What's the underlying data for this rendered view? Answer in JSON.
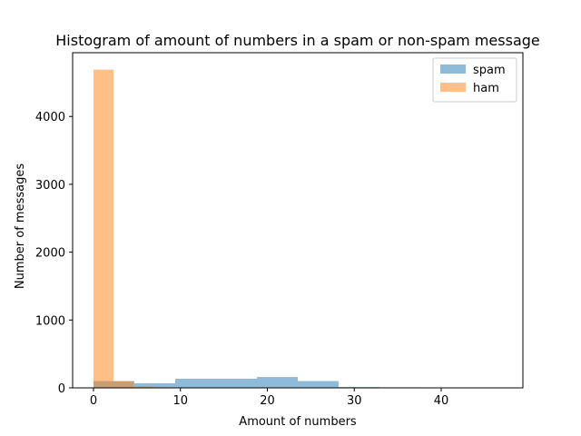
{
  "chart_data": {
    "type": "bar",
    "title": "Histogram of amount of numbers in a spam or non-spam message",
    "xlabel": "Amount of numbers",
    "ylabel": "Number of messages",
    "xlim": [
      -2.4,
      49.4
    ],
    "ylim": [
      0,
      4940
    ],
    "x_ticks": [
      0,
      10,
      20,
      30,
      40
    ],
    "y_ticks": [
      0,
      1000,
      2000,
      3000,
      4000
    ],
    "grid": false,
    "legend_position": "top-right",
    "series": [
      {
        "name": "spam",
        "color": "#1f77b4",
        "opacity": 0.5,
        "bins": [
          {
            "x0": 0.0,
            "x1": 4.7,
            "value": 100
          },
          {
            "x0": 4.7,
            "x1": 9.4,
            "value": 68
          },
          {
            "x0": 9.4,
            "x1": 14.1,
            "value": 135
          },
          {
            "x0": 14.1,
            "x1": 18.8,
            "value": 135
          },
          {
            "x0": 18.8,
            "x1": 23.5,
            "value": 160
          },
          {
            "x0": 23.5,
            "x1": 28.2,
            "value": 100
          },
          {
            "x0": 28.2,
            "x1": 32.9,
            "value": 12
          },
          {
            "x0": 32.9,
            "x1": 37.6,
            "value": 8
          },
          {
            "x0": 37.6,
            "x1": 42.3,
            "value": 0
          },
          {
            "x0": 42.3,
            "x1": 47.0,
            "value": 1
          }
        ]
      },
      {
        "name": "ham",
        "color": "#ff7f0e",
        "opacity": 0.5,
        "bins": [
          {
            "x0": 0.0,
            "x1": 2.3,
            "value": 4690
          },
          {
            "x0": 2.3,
            "x1": 4.6,
            "value": 95
          },
          {
            "x0": 4.6,
            "x1": 6.9,
            "value": 20
          },
          {
            "x0": 6.9,
            "x1": 9.2,
            "value": 8
          },
          {
            "x0": 9.2,
            "x1": 11.5,
            "value": 3
          },
          {
            "x0": 11.5,
            "x1": 13.8,
            "value": 2
          },
          {
            "x0": 13.8,
            "x1": 16.1,
            "value": 1
          },
          {
            "x0": 16.1,
            "x1": 18.4,
            "value": 1
          },
          {
            "x0": 18.4,
            "x1": 20.7,
            "value": 0
          },
          {
            "x0": 20.7,
            "x1": 23.0,
            "value": 1
          }
        ]
      }
    ]
  }
}
